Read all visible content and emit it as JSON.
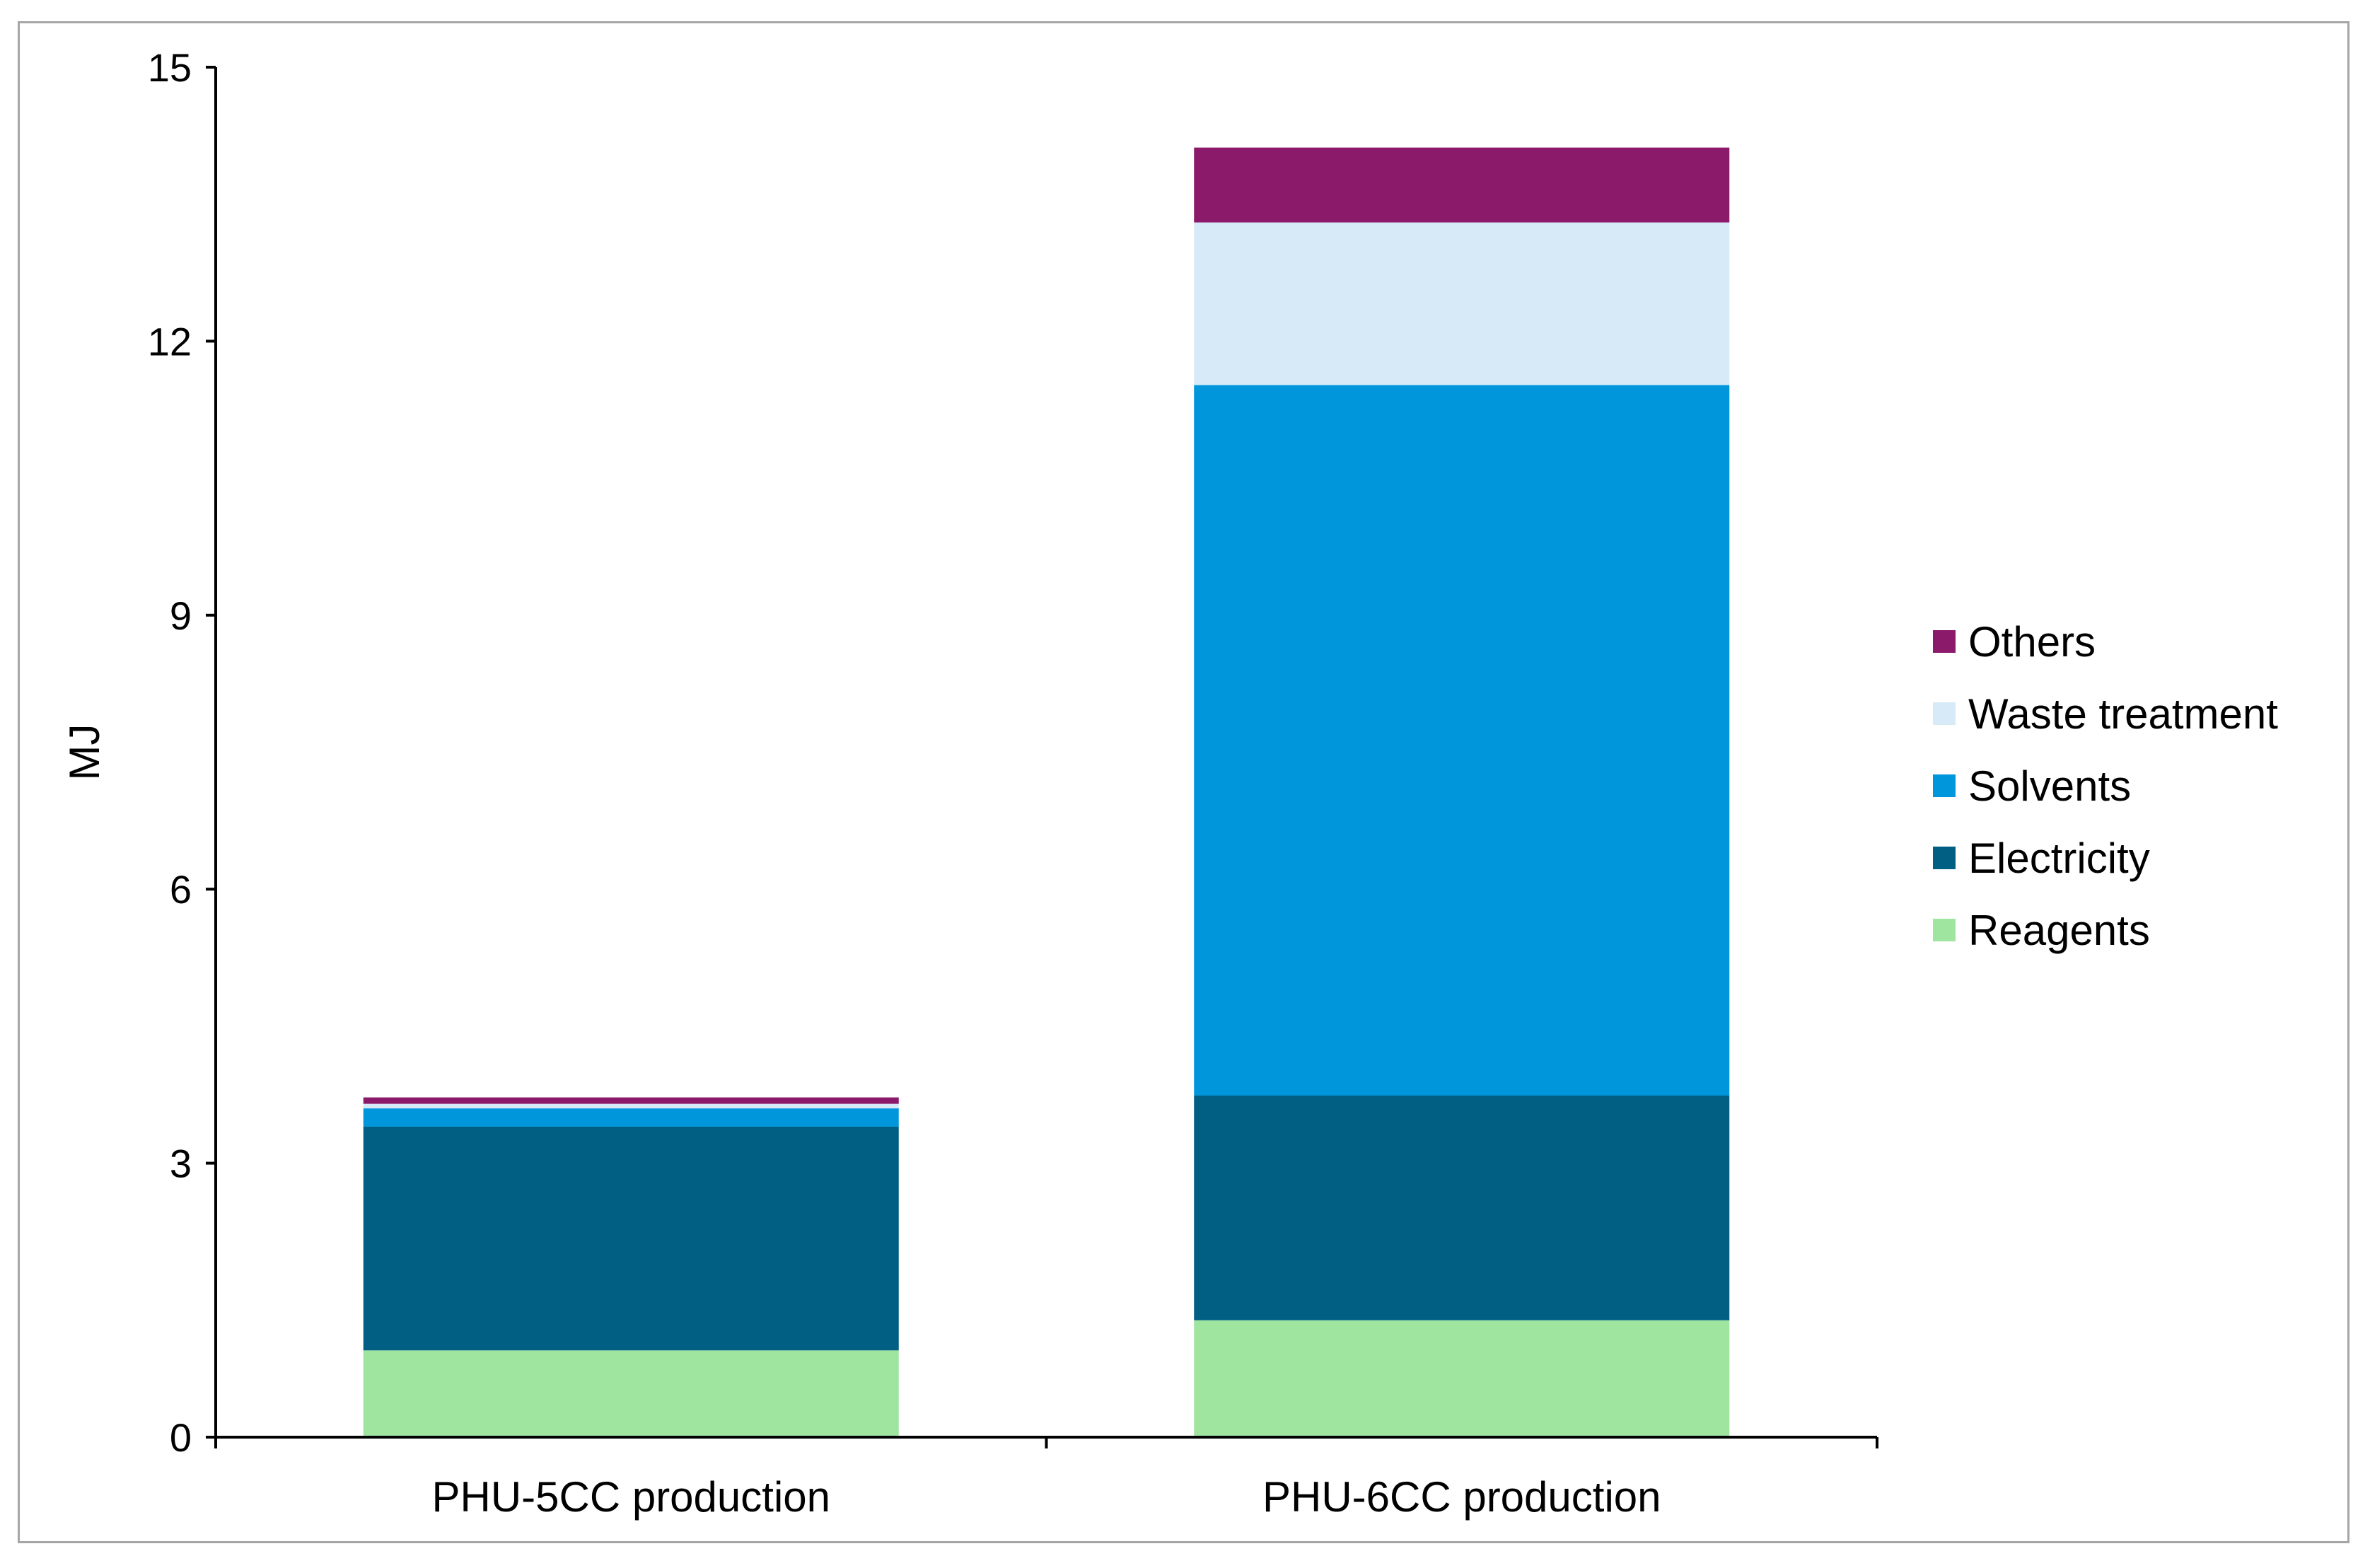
{
  "chart_data": {
    "type": "bar",
    "stacked": true,
    "title": "",
    "xlabel": "",
    "ylabel": "MJ",
    "ylim": [
      0,
      15
    ],
    "yticks": [
      0,
      3,
      6,
      9,
      12,
      15
    ],
    "categories": [
      "PHU-5CC production",
      "PHU-6CC production"
    ],
    "series": [
      {
        "name": "Reagents",
        "color": "#9fe5a0",
        "values": [
          0.95,
          1.28
        ]
      },
      {
        "name": "Electricity",
        "color": "#005f83",
        "values": [
          2.45,
          2.46
        ]
      },
      {
        "name": "Solvents",
        "color": "#0096db",
        "values": [
          0.2,
          7.78
        ]
      },
      {
        "name": "Waste treatment",
        "color": "#d6eaf8",
        "values": [
          0.05,
          1.78
        ]
      },
      {
        "name": "Others",
        "color": "#8b1a6b",
        "values": [
          0.07,
          0.82
        ]
      }
    ],
    "legend": {
      "position": "right",
      "order": [
        "Others",
        "Waste treatment",
        "Solvents",
        "Electricity",
        "Reagents"
      ]
    },
    "grid": false
  }
}
